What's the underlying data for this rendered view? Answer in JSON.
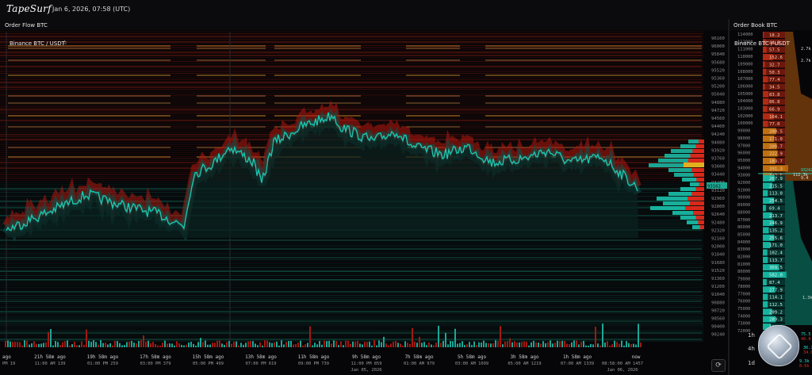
{
  "app": {
    "logo": "TapeSurf",
    "datetime": "Jan 6, 2026, 07:58 (UTC)"
  },
  "order_flow": {
    "title": "Order Flow BTC",
    "pair": "Binance BTC / USDT",
    "price_axis": [
      "96160",
      "96000",
      "95840",
      "95680",
      "95520",
      "95360",
      "95200",
      "95040",
      "94880",
      "94720",
      "94560",
      "94400",
      "94240",
      "94080",
      "93920",
      "93760",
      "93600",
      "93440",
      "93280",
      "93120",
      "92960",
      "92800",
      "92640",
      "92480",
      "92320",
      "92160",
      "92000",
      "91840",
      "91680",
      "91520",
      "91360",
      "91200",
      "91040",
      "90880",
      "90720",
      "90560",
      "90400",
      "90240"
    ],
    "current_price": "93162",
    "time_axis": [
      {
        "ago": "ago",
        "sub": "PM 19"
      },
      {
        "ago": "21h 58m ago",
        "sub": "11:00 AM 139"
      },
      {
        "ago": "19h 58m ago",
        "sub": "01:00 PM 259"
      },
      {
        "ago": "17h 58m ago",
        "sub": "03:00 PM 379"
      },
      {
        "ago": "15h 58m ago",
        "sub": "05:00 PM 499"
      },
      {
        "ago": "13h 58m ago",
        "sub": "07:00 PM 619"
      },
      {
        "ago": "11h 58m ago",
        "sub": "09:00 PM 739"
      },
      {
        "ago": "9h 58m ago",
        "sub": "11:00 PM 859",
        "date": "Jan 05, 2026"
      },
      {
        "ago": "7h 58m ago",
        "sub": "01:00 AM 979"
      },
      {
        "ago": "5h 58m ago",
        "sub": "03:00 AM 1099"
      },
      {
        "ago": "3h 58m ago",
        "sub": "05:00 AM 1219"
      },
      {
        "ago": "1h 58m ago",
        "sub": "07:00 AM 1339"
      },
      {
        "ago": "now",
        "sub": "08:58:00 AM 1457",
        "date": "Jan 06, 2026"
      }
    ]
  },
  "order_book": {
    "title": "Order Book BTC",
    "pair": "Binance BTC / USDT",
    "current_price": "93242",
    "price_ticks": [
      "114000",
      "112000",
      "111000",
      "110000",
      "109000",
      "108000",
      "107000",
      "106000",
      "105000",
      "104000",
      "103000",
      "102000",
      "100000",
      "99000",
      "98000",
      "97000",
      "96000",
      "95000",
      "94000",
      "93000",
      "92000",
      "91000",
      "90000",
      "89000",
      "88000",
      "87000",
      "86000",
      "85000",
      "84000",
      "83000",
      "82000",
      "81000",
      "80000",
      "79000",
      "78000",
      "77000",
      "76000",
      "75000",
      "74000",
      "73000",
      "72000"
    ],
    "asks": [
      "18.2",
      "44.8",
      "57.5",
      "152.6",
      "32.7",
      "50.3",
      "77.4",
      "34.5",
      "83.8",
      "86.8",
      "66.9",
      "164.1",
      "77.0",
      "200.5",
      "171.0",
      "209.7",
      "222.9",
      "189.7",
      "391.3",
      "143.5"
    ],
    "bids": [
      "267.9",
      "215.5",
      "113.0",
      "254.5",
      "69.4",
      "213.7",
      "246.9",
      "135.2",
      "255.6",
      "171.0",
      "102.4",
      "113.7",
      "369.5",
      "582.0",
      "87.4",
      "277.9",
      "114.1",
      "112.5",
      "209.2",
      "289.3",
      "182.8",
      "500.5"
    ],
    "cum_labels": [
      "2.7k",
      "2.7k",
      "112.3k",
      "9.4",
      "1.3k"
    ],
    "timeframes": [
      "1h",
      "4h",
      "1d"
    ],
    "tf_values": [
      "75.5",
      "40.8",
      "36.7",
      "34.0",
      "9.3k",
      "8.6k"
    ]
  },
  "colors": {
    "ask": "#e8321e",
    "bid": "#17c7b0",
    "level": "#f0a030",
    "bg": "#0b0b0d"
  }
}
